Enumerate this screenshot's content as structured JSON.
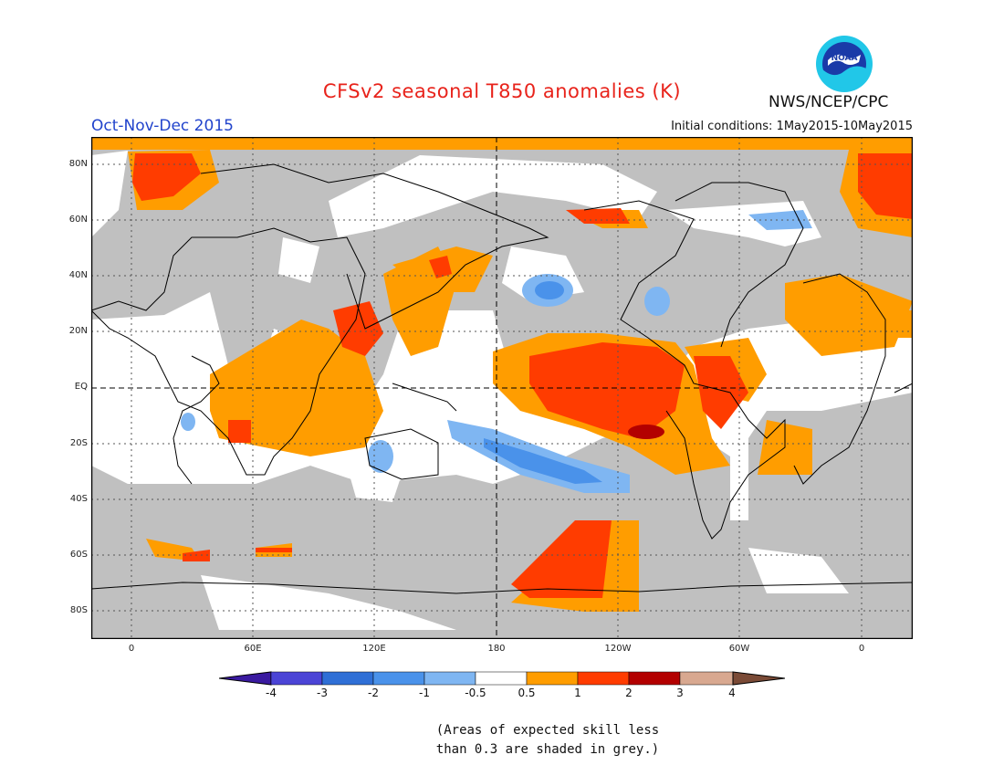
{
  "title": "CFSv2 seasonal T850 anomalies (K)",
  "season": "Oct-Nov-Dec 2015",
  "initial_conditions": "Initial conditions: 1May2015-10May2015",
  "agency": "NWS/NCEP/CPC",
  "logo_text": "NOAA",
  "lat_labels": [
    "80N",
    "60N",
    "40N",
    "20N",
    "EQ",
    "20S",
    "40S",
    "60S",
    "80S"
  ],
  "lon_labels": [
    "0",
    "60E",
    "120E",
    "180",
    "120W",
    "60W",
    "0"
  ],
  "colorbar": {
    "ticks": [
      "-4",
      "-3",
      "-2",
      "-1",
      "-0.5",
      "0.5",
      "1",
      "2",
      "3",
      "4"
    ],
    "colors": [
      "#3a1aa0",
      "#4b44d6",
      "#2f6fd6",
      "#4a92ea",
      "#7fb6f2",
      "#ffffff",
      "#ff9d00",
      "#ff3c00",
      "#b30000",
      "#d8a890",
      "#7a4a36"
    ]
  },
  "note_line1": "(Areas of expected skill less",
  "note_line2": "than 0.3 are shaded in grey.)"
}
